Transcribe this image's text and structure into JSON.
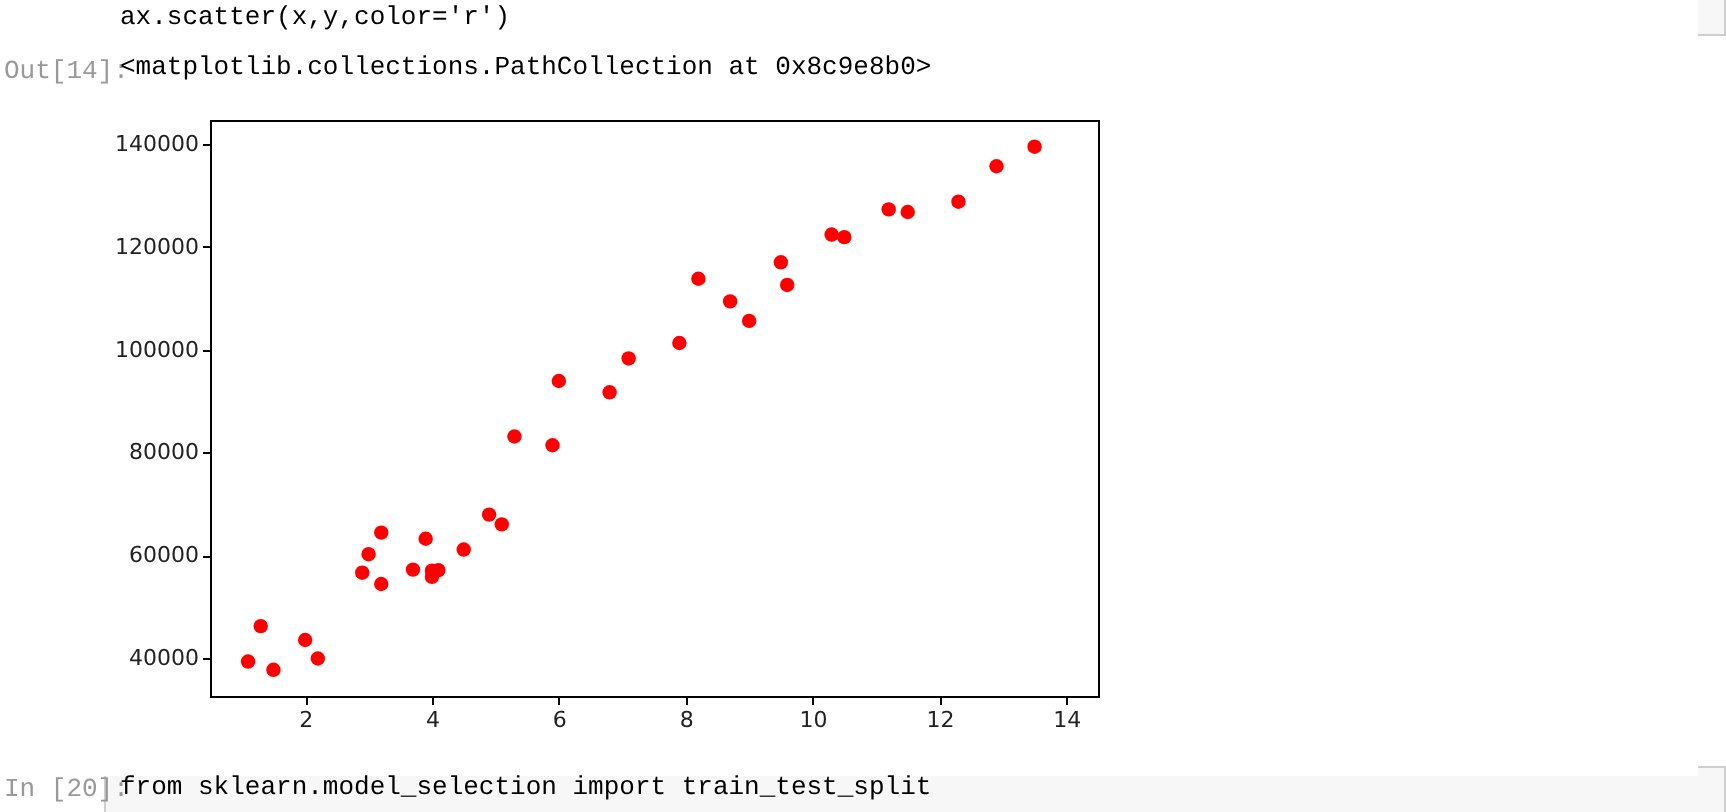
{
  "chart_data": {
    "type": "scatter",
    "annotations": [
      "ax.scatter(x,y,color='r')",
      "Out[14]:",
      "<matplotlib.collections.PathCollection at 0x8c9e8b0>",
      "In [20]:",
      "from sklearn.model_selection import train_test_split"
    ],
    "x": [
      1.1,
      1.3,
      1.5,
      2.0,
      2.2,
      2.9,
      3.0,
      3.2,
      3.2,
      3.7,
      3.9,
      4.0,
      4.0,
      4.1,
      4.5,
      4.9,
      5.1,
      5.3,
      5.9,
      6.0,
      6.8,
      7.1,
      7.9,
      8.2,
      8.7,
      9.0,
      9.5,
      9.6,
      10.3,
      10.5,
      11.2,
      11.5,
      12.3,
      12.9,
      13.5
    ],
    "series": [
      {
        "color": "#ff0000",
        "values": [
          39300,
          46200,
          37700,
          43500,
          39900,
          56600,
          60200,
          54400,
          64400,
          57200,
          63200,
          55800,
          57000,
          57100,
          61100,
          67900,
          66000,
          83100,
          81400,
          93900,
          91700,
          98300,
          101300,
          113800,
          109400,
          105600,
          117000,
          112600,
          122400,
          121900,
          127300,
          126800,
          128800,
          135700,
          139500
        ]
      }
    ],
    "xlim": [
      0.5,
      14.5
    ],
    "ylim": [
      32600,
      144700
    ],
    "xticks": [
      2,
      4,
      6,
      8,
      10,
      12,
      14
    ],
    "yticks": [
      40000,
      60000,
      80000,
      100000,
      120000,
      140000
    ],
    "grid": false
  }
}
